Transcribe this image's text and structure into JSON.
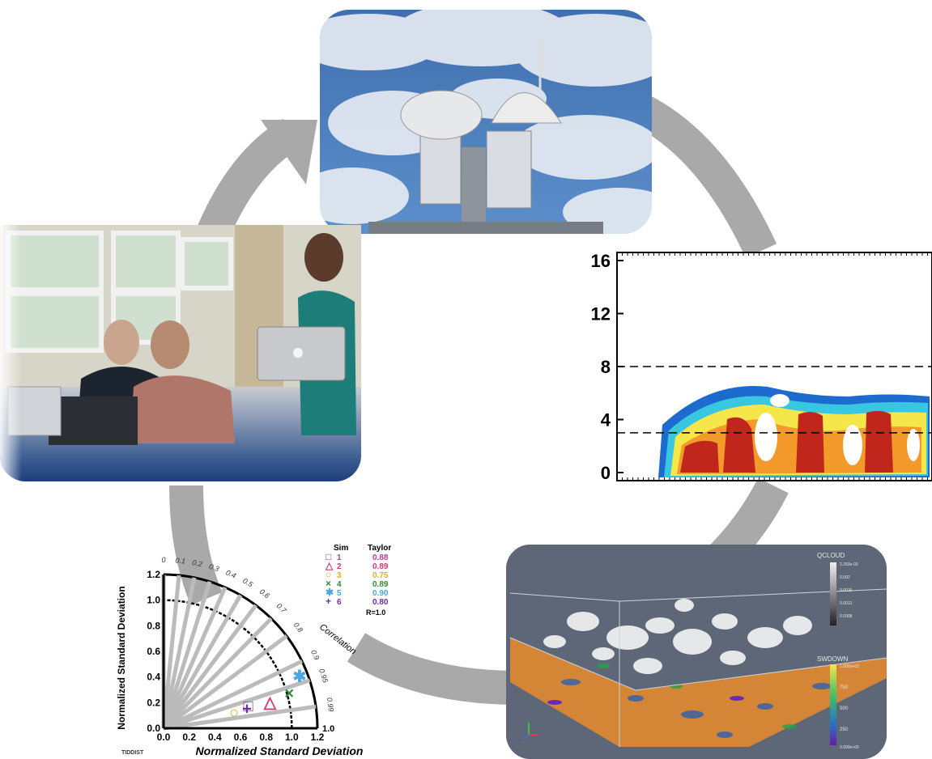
{
  "scene_caption": "",
  "profile_chart": {
    "y_ticks": [
      "16",
      "12",
      "8",
      "4",
      "0"
    ],
    "y_tick_values": [
      16,
      12,
      8,
      4,
      0
    ],
    "dashed_levels": [
      8,
      3
    ],
    "ylim": [
      0,
      16
    ]
  },
  "model_3d": {
    "label_top": "QCLOUD",
    "top_ticks": [
      "2.393e-03",
      "0.002",
      "0.0016",
      "0.0012",
      "0.0008"
    ],
    "label_bottom": "SWDOWN",
    "bottom_ticks": [
      "1.000e+03",
      "750",
      "500",
      "250",
      "0.000e+00"
    ]
  },
  "chart_data": {
    "type": "scatter",
    "title": "",
    "xlabel": "Normalized Standard Deviation",
    "ylabel": "Normalized Standard Deviation",
    "arc_label": "Correlation",
    "xlim": [
      0,
      1.2
    ],
    "ylim": [
      0,
      1.2
    ],
    "x_ticks": [
      "0.0",
      "0.2",
      "0.4",
      "0.6",
      "0.8",
      "1.0",
      "1.2"
    ],
    "y_ticks": [
      "0.0",
      "0.2",
      "0.4",
      "0.6",
      "0.8",
      "1.0",
      "1.2"
    ],
    "corr_ticks": [
      "0",
      "0.1",
      "0.2",
      "0.3",
      "0.4",
      "0.5",
      "0.6",
      "0.7",
      "0.8",
      "0.9",
      "0.95",
      "0.99"
    ],
    "ref_label": "1.0",
    "legend_header": [
      "Sim",
      "Taylor"
    ],
    "legend_footer": "R=1.0",
    "corner_label": "TIDDIST",
    "series": [
      {
        "marker": "□",
        "sim": "1",
        "score": "0.88",
        "color": "#b0409e",
        "x": 0.66,
        "y": 0.17
      },
      {
        "marker": "△",
        "sim": "2",
        "score": "0.89",
        "color": "#d4396f",
        "x": 0.83,
        "y": 0.2
      },
      {
        "marker": "○",
        "sim": "3",
        "score": "0.75",
        "color": "#d8b22a",
        "x": 0.55,
        "y": 0.12
      },
      {
        "marker": "×",
        "sim": "4",
        "score": "0.89",
        "color": "#2f8a3a",
        "x": 0.98,
        "y": 0.27
      },
      {
        "marker": "✱",
        "sim": "5",
        "score": "0.90",
        "color": "#4aa7e0",
        "x": 1.06,
        "y": 0.4
      },
      {
        "marker": "+",
        "sim": "6",
        "score": "0.80",
        "color": "#6a2fa4",
        "x": 0.65,
        "y": 0.15
      }
    ]
  }
}
